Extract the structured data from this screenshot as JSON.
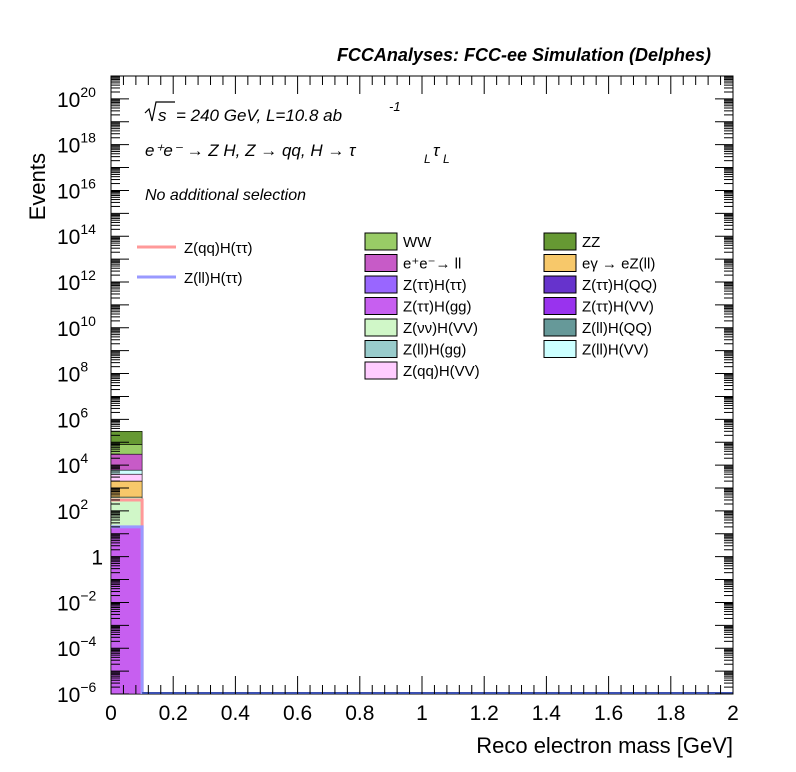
{
  "chart_data": {
    "type": "bar",
    "title": "FCCAnalyses: FCC-ee Simulation (Delphes)",
    "annotations": {
      "sqrt_s_symbol": "√s",
      "energy_lumi": "= 240 GeV, L=10.8 ab",
      "lumi_exponent": "-1",
      "process": "e⁺e⁻ → Z H, Z → qq, H → τ",
      "tau_sub_1": "L",
      "tau_2": "τ",
      "tau_sub_2": "L",
      "selection": "No additional selection"
    },
    "xlabel": "Reco electron mass [GeV]",
    "ylabel": "Events",
    "xlim": [
      0,
      2
    ],
    "ylim_exponent": [
      -6,
      21
    ],
    "y_scale": "log",
    "x_tick_labels": [
      "0",
      "0.2",
      "0.4",
      "0.6",
      "0.8",
      "1",
      "1.2",
      "1.4",
      "1.6",
      "1.8",
      "2"
    ],
    "y_tick_labels": [
      {
        "base": "10",
        "exp": "−6",
        "value": -6
      },
      {
        "base": "10",
        "exp": "−4",
        "value": -4
      },
      {
        "base": "10",
        "exp": "−2",
        "value": -2
      },
      {
        "base": "1",
        "exp": "",
        "value": 0
      },
      {
        "base": "10",
        "exp": "2",
        "value": 2
      },
      {
        "base": "10",
        "exp": "4",
        "value": 4
      },
      {
        "base": "10",
        "exp": "6",
        "value": 6
      },
      {
        "base": "10",
        "exp": "8",
        "value": 8
      },
      {
        "base": "10",
        "exp": "10",
        "value": 10
      },
      {
        "base": "10",
        "exp": "12",
        "value": 12
      },
      {
        "base": "10",
        "exp": "14",
        "value": 14
      },
      {
        "base": "10",
        "exp": "16",
        "value": 16
      },
      {
        "base": "10",
        "exp": "18",
        "value": 18
      },
      {
        "base": "10",
        "exp": "20",
        "value": 20
      }
    ],
    "bin": [
      0,
      0.1
    ],
    "stack_order": "bottom-to-top",
    "series": [
      {
        "name": "Z(ττ)H(gg)",
        "color": "#c75ff0",
        "stack_top": 20
      },
      {
        "name": "Z(νν)H(VV)",
        "color": "#d0f7c8",
        "stack_top": 400
      },
      {
        "name": "eγ → eZ(ll)",
        "color": "#f7c86a",
        "stack_top": 2000
      },
      {
        "name": "Z(qq)H(VV)",
        "color": "#ffccff",
        "stack_top": 4000
      },
      {
        "name": "Z(ll)H(VV)",
        "color": "#ccffff",
        "stack_top": 6000
      },
      {
        "name": "e⁺e⁻→ ll",
        "color": "#c75bc7",
        "stack_top": 30000
      },
      {
        "name": "WW",
        "color": "#99cc66",
        "stack_top": 80000
      },
      {
        "name": "ZZ",
        "color": "#669933",
        "stack_top": 300000
      }
    ],
    "signals": [
      {
        "name": "Z(qq)H(ττ)",
        "color": "#ff9999",
        "value": 300
      },
      {
        "name": "Z(ll)H(ττ)",
        "color": "#9999ff",
        "value": 20
      }
    ],
    "legend_backgrounds": [
      {
        "name": "WW",
        "color": "#99cc66"
      },
      {
        "name": "e⁺e⁻→ ll",
        "color": "#c75bc7"
      },
      {
        "name": "Z(ττ)H(ττ)",
        "color": "#9966ff"
      },
      {
        "name": "Z(ττ)H(gg)",
        "color": "#c75ff0"
      },
      {
        "name": "Z(νν)H(VV)",
        "color": "#d0f7c8"
      },
      {
        "name": "Z(ll)H(gg)",
        "color": "#99cccc"
      },
      {
        "name": "Z(qq)H(VV)",
        "color": "#ffccff"
      },
      {
        "name": "ZZ",
        "color": "#669933"
      },
      {
        "name": "eγ → eZ(ll)",
        "color": "#f7c86a"
      },
      {
        "name": "Z(ττ)H(QQ)",
        "color": "#6633cc"
      },
      {
        "name": "Z(ττ)H(VV)",
        "color": "#9933ee"
      },
      {
        "name": "Z(ll)H(QQ)",
        "color": "#669999"
      },
      {
        "name": "Z(ll)H(VV)",
        "color": "#ccffff"
      }
    ],
    "legend_placement": "top-center",
    "signal_legend_placement": "top-left",
    "grid": false
  }
}
